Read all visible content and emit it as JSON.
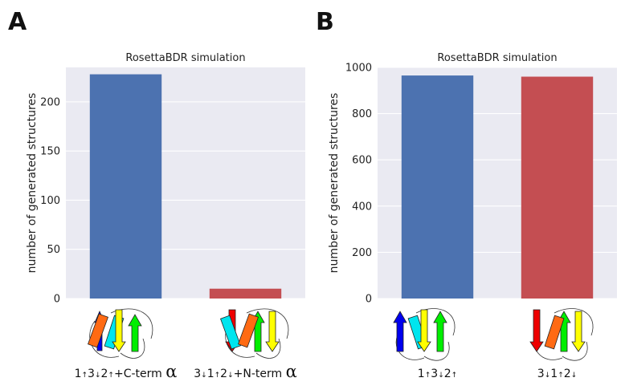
{
  "panels": [
    {
      "letter": "A"
    },
    {
      "letter": "B"
    }
  ],
  "chart_data": [
    {
      "type": "bar",
      "title": "RosettaBDR simulation",
      "ylabel": "number of generated structures",
      "xlabel": "",
      "ylim": [
        0,
        235
      ],
      "yticks": [
        0,
        50,
        100,
        150,
        200
      ],
      "grid": true,
      "categories": [
        "1↑3↓2↑+C-term α",
        "3↓1↑2↓+N-term α"
      ],
      "values": [
        228,
        10
      ],
      "colors": [
        "#4c72b0",
        "#c44e52"
      ],
      "category_labels": [
        [
          {
            "t": "1"
          },
          {
            "t": "↑",
            "a": 1
          },
          {
            "t": "3"
          },
          {
            "t": "↓",
            "a": 1
          },
          {
            "t": "2"
          },
          {
            "t": "↑",
            "a": 1
          },
          {
            "t": "+C-term "
          },
          {
            "t": "α",
            "g": 1
          }
        ],
        [
          {
            "t": "3"
          },
          {
            "t": "↓",
            "a": 1
          },
          {
            "t": "1"
          },
          {
            "t": "↑",
            "a": 1
          },
          {
            "t": "2"
          },
          {
            "t": "↓",
            "a": 1
          },
          {
            "t": "+N-term "
          },
          {
            "t": "α",
            "g": 1
          }
        ]
      ]
    },
    {
      "type": "bar",
      "title": "RosettaBDR simulation",
      "ylabel": "number of generated structures",
      "xlabel": "",
      "ylim": [
        0,
        1000
      ],
      "yticks": [
        0,
        200,
        400,
        600,
        800,
        1000
      ],
      "grid": true,
      "categories": [
        "1↑3↓2↑",
        "3↓1↑2↓"
      ],
      "values": [
        965,
        960
      ],
      "colors": [
        "#4c72b0",
        "#c44e52"
      ],
      "category_labels": [
        [
          {
            "t": "1"
          },
          {
            "t": "↑",
            "a": 1
          },
          {
            "t": "3"
          },
          {
            "t": "↓",
            "a": 1
          },
          {
            "t": "2"
          },
          {
            "t": "↑",
            "a": 1
          }
        ],
        [
          {
            "t": "3"
          },
          {
            "t": "↓",
            "a": 1
          },
          {
            "t": "1"
          },
          {
            "t": "↑",
            "a": 1
          },
          {
            "t": "2"
          },
          {
            "t": "↓",
            "a": 1
          }
        ]
      ]
    }
  ],
  "topology_icons": [
    {
      "description_colors": {
        "strand1": "#0000ee",
        "helix1": "#ff6a13",
        "helix2": "#00e5ee",
        "strand2": "#ffff00",
        "strand3": "#00ee00"
      }
    },
    {
      "description_colors": {
        "strand1": "#ee0000",
        "helix1": "#00e5ee",
        "helix2": "#ff6a13",
        "strand2": "#00ee00",
        "strand3": "#ffff00"
      }
    },
    {
      "description_colors": {
        "strand1": "#0000ee",
        "helix1": "#00e5ee",
        "strand2": "#ffff00",
        "strand3": "#00ee00"
      }
    },
    {
      "description_colors": {
        "strand1": "#ee0000",
        "helix1": "#ff6a13",
        "strand2": "#00ee00",
        "strand3": "#ffff00"
      }
    }
  ]
}
